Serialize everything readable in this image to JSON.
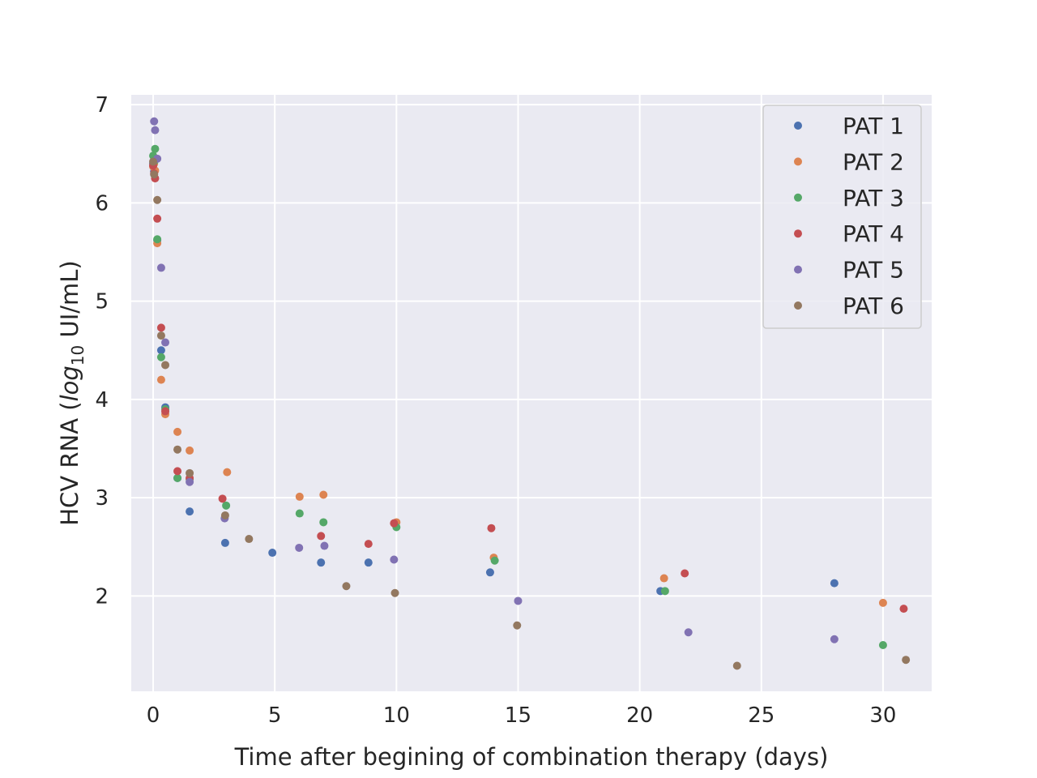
{
  "chart_data": {
    "type": "scatter",
    "xlabel": "Time after begining of combination therapy (days)",
    "ylabel_main": "HCV RNA (",
    "ylabel_log": "log",
    "ylabel_sub": "10",
    "ylabel_tail": " UI/mL)",
    "xlim": [
      -0.9,
      32.0
    ],
    "ylim": [
      1.03,
      7.1
    ],
    "xticks": [
      0,
      5,
      10,
      15,
      20,
      25,
      30
    ],
    "yticks": [
      2,
      3,
      4,
      5,
      6,
      7
    ],
    "grid": true,
    "legend_position": "top-right",
    "series": [
      {
        "name": "PAT 1",
        "color": "#4c72b0",
        "x": [
          0.0,
          0.04,
          0.08,
          0.17,
          0.33,
          0.5,
          1.0,
          1.5,
          2.96,
          4.9,
          6.9,
          8.85,
          13.85,
          20.85,
          28.0
        ],
        "y": [
          6.4,
          6.32,
          6.45,
          5.62,
          4.5,
          3.92,
          3.2,
          2.86,
          2.54,
          2.44,
          2.34,
          2.34,
          2.24,
          2.05,
          2.13
        ]
      },
      {
        "name": "PAT 2",
        "color": "#dd8452",
        "x": [
          0.0,
          0.04,
          0.08,
          0.17,
          0.33,
          0.5,
          1.0,
          1.5,
          3.04,
          6.02,
          7.0,
          10.0,
          14.0,
          21.0,
          30.0
        ],
        "y": [
          6.37,
          6.4,
          6.33,
          5.59,
          4.2,
          3.85,
          3.67,
          3.48,
          3.26,
          3.01,
          3.03,
          2.75,
          2.39,
          2.18,
          1.93
        ]
      },
      {
        "name": "PAT 3",
        "color": "#55a868",
        "x": [
          0.0,
          0.04,
          0.08,
          0.17,
          0.33,
          0.5,
          1.0,
          1.5,
          3.0,
          6.02,
          7.0,
          10.0,
          14.04,
          21.04,
          30.0
        ],
        "y": [
          6.48,
          6.42,
          6.55,
          5.63,
          4.43,
          3.9,
          3.2,
          3.19,
          2.92,
          2.84,
          2.75,
          2.7,
          2.36,
          2.05,
          1.5
        ]
      },
      {
        "name": "PAT 4",
        "color": "#c44e52",
        "x": [
          0.0,
          0.04,
          0.08,
          0.17,
          0.33,
          0.5,
          1.0,
          1.5,
          2.85,
          6.9,
          8.85,
          9.9,
          13.9,
          21.85,
          30.85
        ],
        "y": [
          6.38,
          6.3,
          6.25,
          5.84,
          4.73,
          3.88,
          3.27,
          3.2,
          2.99,
          2.61,
          2.53,
          2.74,
          2.69,
          2.23,
          1.87
        ]
      },
      {
        "name": "PAT 5",
        "color": "#8172b3",
        "x": [
          0.04,
          0.08,
          0.17,
          0.33,
          0.5,
          1.5,
          2.94,
          6.0,
          7.04,
          9.9,
          15.0,
          22.0,
          28.0
        ],
        "y": [
          6.83,
          6.74,
          6.45,
          5.34,
          4.58,
          3.16,
          2.79,
          2.49,
          2.51,
          2.37,
          1.95,
          1.63,
          1.56
        ]
      },
      {
        "name": "PAT 6",
        "color": "#937860",
        "x": [
          0.0,
          0.04,
          0.17,
          0.33,
          0.5,
          1.0,
          1.5,
          2.96,
          3.94,
          7.94,
          9.94,
          14.96,
          24.0,
          30.94
        ],
        "y": [
          6.42,
          6.29,
          6.03,
          4.65,
          4.35,
          3.49,
          3.25,
          2.82,
          2.58,
          2.1,
          2.03,
          1.7,
          1.29,
          1.35
        ]
      }
    ]
  }
}
